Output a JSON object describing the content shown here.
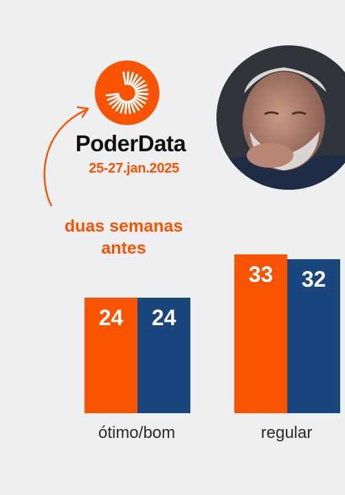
{
  "brand": {
    "name": "PoderData",
    "date": "25-27.jan.2025"
  },
  "annotation": {
    "line1": "duas semanas",
    "line2": "antes"
  },
  "colors": {
    "orange": "#fa5300",
    "navy": "#1a467e",
    "background": "#eeeff1"
  },
  "chart_data": {
    "type": "bar",
    "categories": [
      "ótimo/bom",
      "regular"
    ],
    "series": [
      {
        "values": [
          24,
          33
        ],
        "color": "#fa5300"
      },
      {
        "values": [
          24,
          32
        ],
        "color": "#1a467e"
      }
    ],
    "title": "",
    "xlabel": "",
    "ylabel": "",
    "grid": false
  }
}
